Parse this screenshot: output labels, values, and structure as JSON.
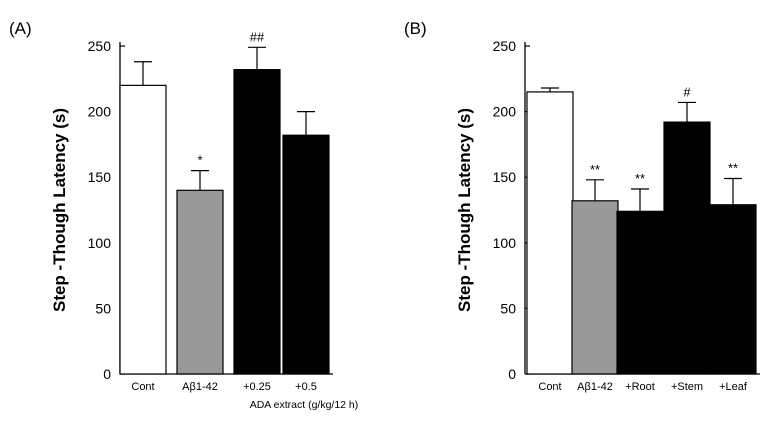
{
  "chart_data": [
    {
      "type": "bar",
      "panel_label": "(A)",
      "ylabel": "Step -Though Latency (s)",
      "xlabel": "ADA extract (g/kg/12 h)",
      "ylim": [
        0,
        250
      ],
      "yticks": [
        "0",
        "50",
        "100",
        "150",
        "200",
        "250"
      ],
      "categories": [
        "Cont",
        "Aβ1-42",
        "+0.25",
        "+0.5"
      ],
      "values": [
        220,
        140,
        232,
        182
      ],
      "errors": [
        18,
        15,
        17,
        18
      ],
      "significance": [
        "",
        "*",
        "##",
        ""
      ],
      "bar_colors": [
        "#ffffff",
        "#999999",
        "#000000",
        "#000000"
      ],
      "grid": false
    },
    {
      "type": "bar",
      "panel_label": "(B)",
      "ylabel": "Step -Though Latency (s)",
      "xlabel": "",
      "ylim": [
        0,
        250
      ],
      "yticks": [
        "0",
        "50",
        "100",
        "150",
        "200",
        "250"
      ],
      "categories": [
        "Cont",
        "Aβ1-42",
        "+Root",
        "+Stem",
        "+Leaf"
      ],
      "values": [
        215,
        132,
        124,
        192,
        129
      ],
      "errors": [
        3,
        16,
        17,
        15,
        20
      ],
      "significance": [
        "",
        "**",
        "**",
        "#",
        "**"
      ],
      "bar_colors": [
        "#ffffff",
        "#999999",
        "#000000",
        "#000000",
        "#000000"
      ],
      "grid": false
    }
  ]
}
